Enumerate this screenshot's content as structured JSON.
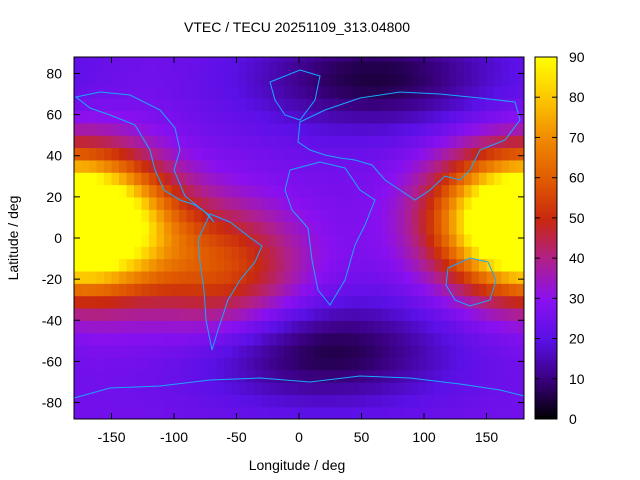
{
  "chart_data": {
    "type": "heatmap",
    "title": "VTEC / TECU 20251109_313.04800",
    "xlabel": "Longitude / deg",
    "ylabel": "Latitude / deg",
    "xlim": [
      -180,
      180
    ],
    "ylim": [
      -88,
      88
    ],
    "xticks": [
      "-150",
      "-100",
      "-50",
      "0",
      "50",
      "100",
      "150"
    ],
    "yticks": [
      "80",
      "60",
      "40",
      "20",
      "0",
      "-20",
      "-40",
      "-60",
      "-80"
    ],
    "colorbar": {
      "range": [
        0,
        90
      ],
      "ticks": [
        "90",
        "80",
        "70",
        "60",
        "50",
        "40",
        "30",
        "20",
        "10",
        "0"
      ],
      "palette": "black-purple-blue-red-orange-yellow"
    },
    "overlay": "coastlines",
    "field_features": [
      {
        "feature": "equatorial crest (Pacific)",
        "lon": -165,
        "lat": 5,
        "vtec": 85
      },
      {
        "feature": "equatorial crest (West Pacific)",
        "lon": 170,
        "lat": 10,
        "vtec": 80
      },
      {
        "feature": "South America anomaly",
        "lon": -60,
        "lat": -15,
        "vtec": 55
      },
      {
        "feature": "northern polar minimum",
        "lon": 60,
        "lat": 78,
        "vtec": 5
      },
      {
        "feature": "southern mid-latitude trough",
        "lon": 20,
        "lat": -55,
        "vtec": 5
      },
      {
        "feature": "background",
        "lon": 10,
        "lat": 0,
        "vtec": 25
      }
    ]
  }
}
